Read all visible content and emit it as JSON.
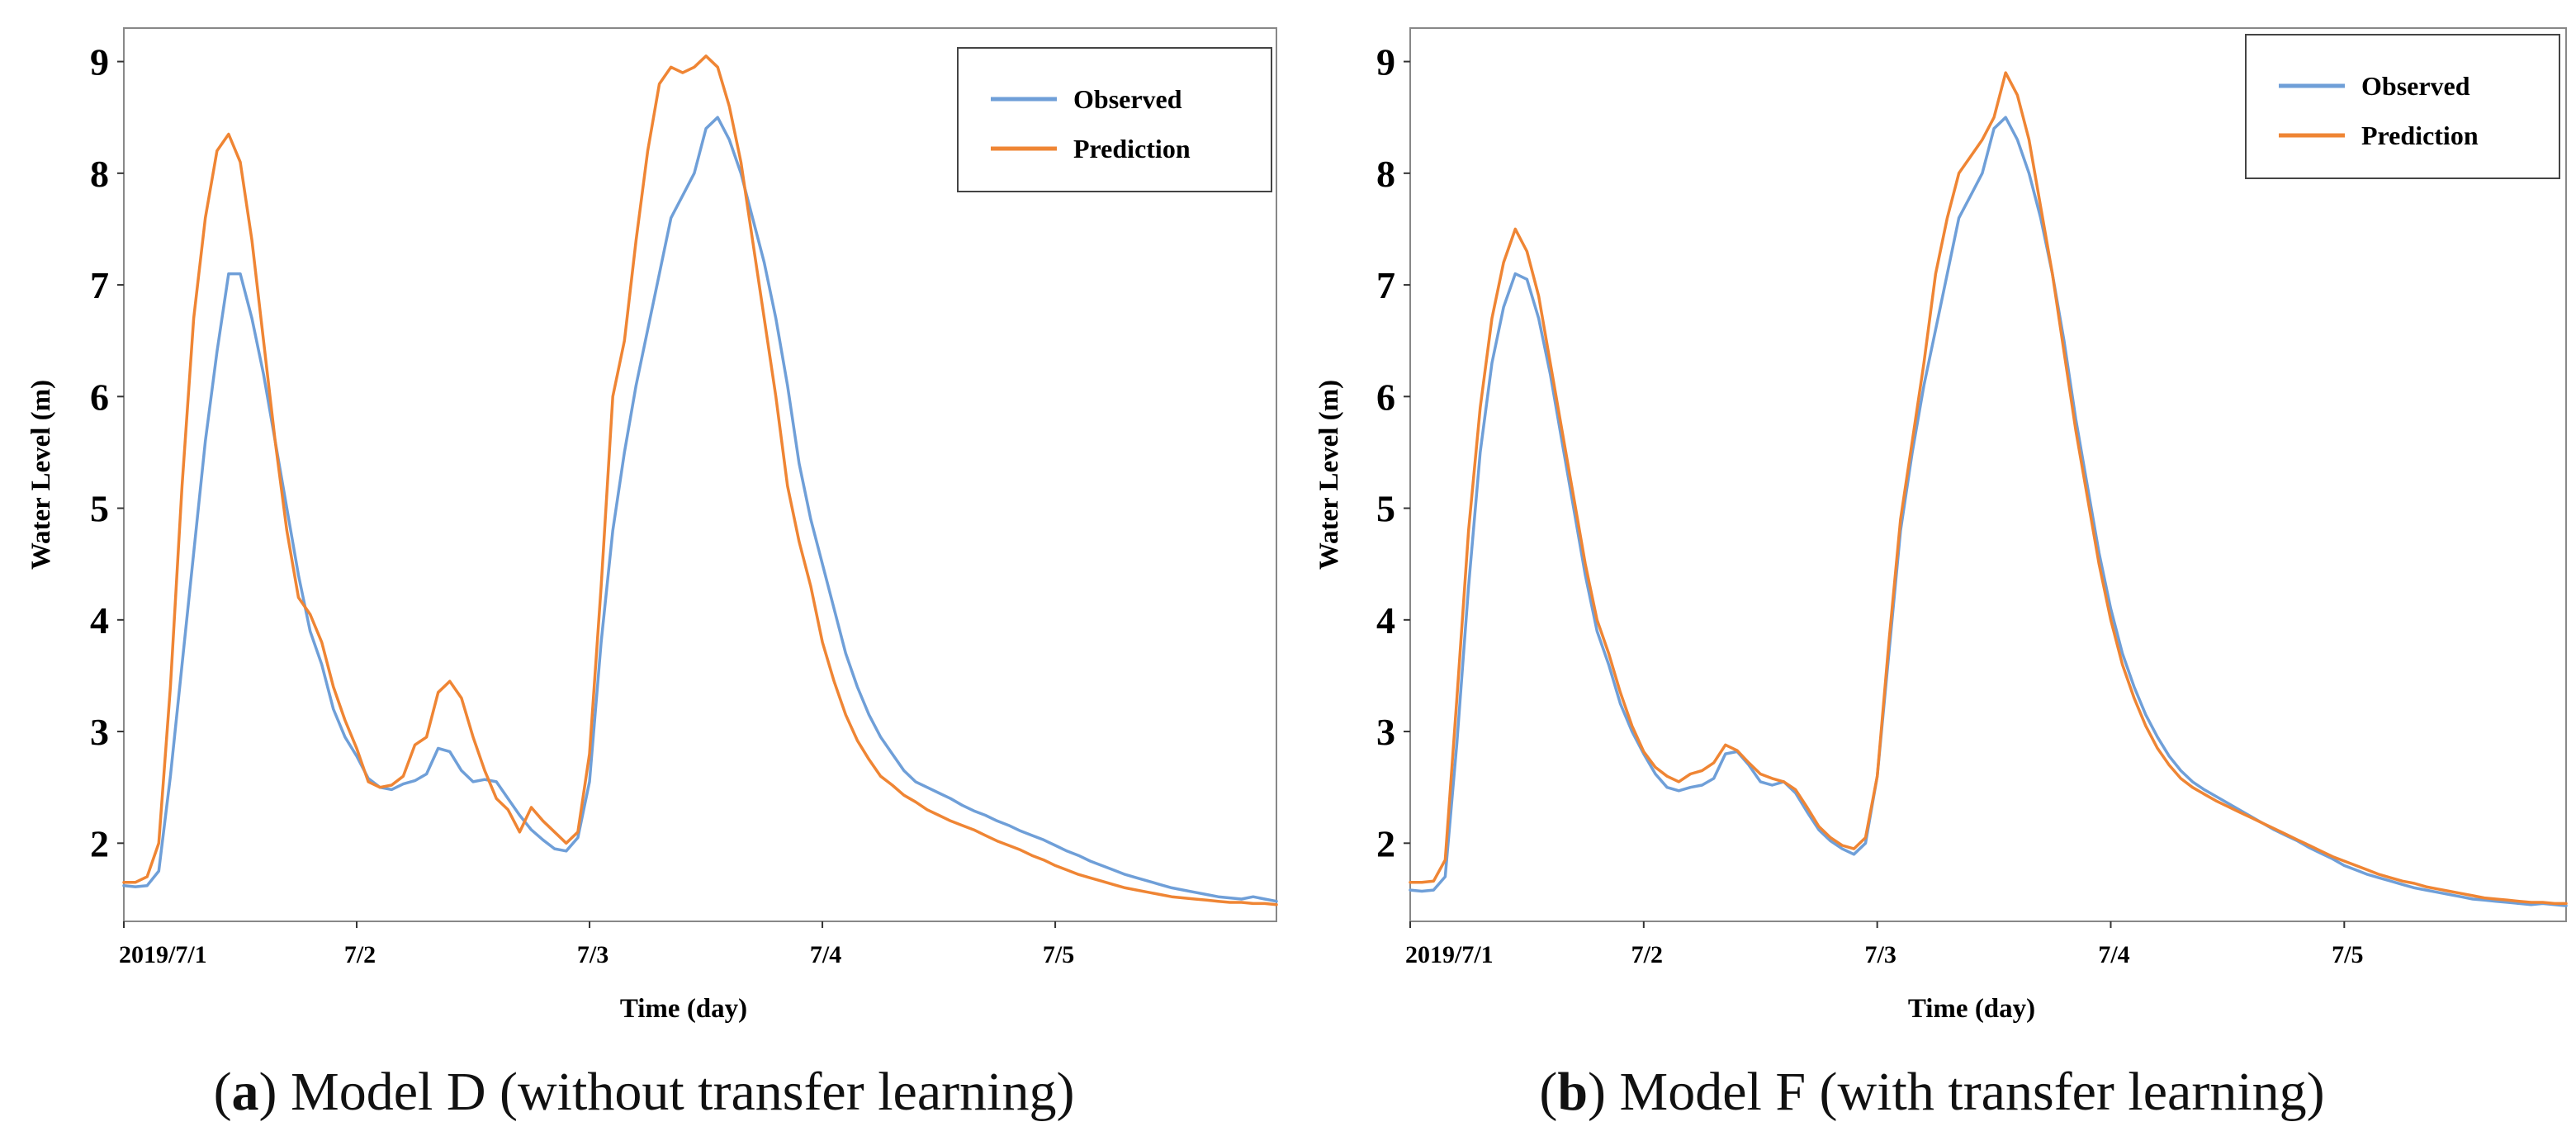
{
  "figures": [
    {
      "id": "a",
      "caption": {
        "letter": "a",
        "text": "Model D (without transfer learning)"
      },
      "chart_data": {
        "type": "line",
        "title": "",
        "xlabel": "Time (day)",
        "ylabel": "Water Level (m)",
        "x_tick_labels": [
          "2019/7/1",
          "7/2",
          "7/3",
          "7/4",
          "7/5"
        ],
        "x_tick_values": [
          0,
          1,
          2,
          3,
          4
        ],
        "xlim": [
          0,
          4.95
        ],
        "ylim": [
          1.3,
          9.3
        ],
        "y_ticks": [
          2,
          3,
          4,
          5,
          6,
          7,
          8,
          9
        ],
        "grid": false,
        "legend_position": "top-right",
        "x": [
          0,
          0.05,
          0.1,
          0.15,
          0.2,
          0.25,
          0.3,
          0.35,
          0.4,
          0.45,
          0.5,
          0.55,
          0.6,
          0.65,
          0.7,
          0.75,
          0.8,
          0.85,
          0.9,
          0.95,
          1.0,
          1.05,
          1.1,
          1.15,
          1.2,
          1.25,
          1.3,
          1.35,
          1.4,
          1.45,
          1.5,
          1.55,
          1.6,
          1.65,
          1.7,
          1.75,
          1.8,
          1.85,
          1.9,
          1.95,
          2.0,
          2.05,
          2.1,
          2.15,
          2.2,
          2.25,
          2.3,
          2.35,
          2.4,
          2.45,
          2.5,
          2.55,
          2.6,
          2.65,
          2.7,
          2.75,
          2.8,
          2.85,
          2.9,
          2.95,
          3.0,
          3.05,
          3.1,
          3.15,
          3.2,
          3.25,
          3.3,
          3.35,
          3.4,
          3.45,
          3.5,
          3.55,
          3.6,
          3.65,
          3.7,
          3.75,
          3.8,
          3.85,
          3.9,
          3.95,
          4.0,
          4.05,
          4.1,
          4.15,
          4.2,
          4.25,
          4.3,
          4.35,
          4.4,
          4.45,
          4.5,
          4.55,
          4.6,
          4.65,
          4.7,
          4.75,
          4.8,
          4.85,
          4.9,
          4.95
        ],
        "series": [
          {
            "name": "Observed",
            "color": "#6f9fd8",
            "values": [
              1.62,
              1.61,
              1.62,
              1.75,
              2.6,
              3.6,
              4.6,
              5.6,
              6.4,
              7.1,
              7.1,
              6.7,
              6.2,
              5.6,
              5.0,
              4.4,
              3.9,
              3.6,
              3.2,
              2.95,
              2.78,
              2.58,
              2.5,
              2.48,
              2.53,
              2.56,
              2.62,
              2.85,
              2.82,
              2.65,
              2.55,
              2.57,
              2.55,
              2.4,
              2.25,
              2.12,
              2.03,
              1.95,
              1.93,
              2.05,
              2.55,
              3.8,
              4.8,
              5.5,
              6.1,
              6.6,
              7.1,
              7.6,
              7.8,
              8.0,
              8.4,
              8.5,
              8.3,
              8.0,
              7.6,
              7.2,
              6.7,
              6.1,
              5.4,
              4.9,
              4.5,
              4.1,
              3.7,
              3.4,
              3.15,
              2.95,
              2.8,
              2.65,
              2.55,
              2.5,
              2.45,
              2.4,
              2.34,
              2.29,
              2.25,
              2.2,
              2.16,
              2.11,
              2.07,
              2.03,
              1.98,
              1.93,
              1.89,
              1.84,
              1.8,
              1.76,
              1.72,
              1.69,
              1.66,
              1.63,
              1.6,
              1.58,
              1.56,
              1.54,
              1.52,
              1.51,
              1.5,
              1.52,
              1.5,
              1.48
            ]
          },
          {
            "name": "Prediction",
            "color": "#ef8534",
            "values": [
              1.65,
              1.65,
              1.7,
              2.0,
              3.4,
              5.2,
              6.7,
              7.6,
              8.2,
              8.35,
              8.1,
              7.4,
              6.5,
              5.6,
              4.8,
              4.2,
              4.05,
              3.8,
              3.4,
              3.1,
              2.85,
              2.55,
              2.5,
              2.52,
              2.6,
              2.88,
              2.95,
              3.35,
              3.45,
              3.3,
              2.95,
              2.65,
              2.4,
              2.3,
              2.1,
              2.32,
              2.2,
              2.1,
              2.0,
              2.1,
              2.8,
              4.3,
              6.0,
              6.5,
              7.4,
              8.2,
              8.8,
              8.95,
              8.9,
              8.95,
              9.05,
              8.95,
              8.6,
              8.1,
              7.4,
              6.7,
              6.0,
              5.2,
              4.7,
              4.3,
              3.8,
              3.45,
              3.15,
              2.92,
              2.75,
              2.6,
              2.52,
              2.43,
              2.37,
              2.3,
              2.25,
              2.2,
              2.16,
              2.12,
              2.07,
              2.02,
              1.98,
              1.94,
              1.89,
              1.85,
              1.8,
              1.76,
              1.72,
              1.69,
              1.66,
              1.63,
              1.6,
              1.58,
              1.56,
              1.54,
              1.52,
              1.51,
              1.5,
              1.49,
              1.48,
              1.47,
              1.47,
              1.46,
              1.46,
              1.45
            ]
          }
        ]
      }
    },
    {
      "id": "b",
      "caption": {
        "letter": "b",
        "text": "Model F (with transfer learning)"
      },
      "chart_data": {
        "type": "line",
        "title": "",
        "xlabel": "Time (day)",
        "ylabel": "Water Level (m)",
        "x_tick_labels": [
          "2019/7/1",
          "7/2",
          "7/3",
          "7/4",
          "7/5"
        ],
        "x_tick_values": [
          0,
          1,
          2,
          3,
          4
        ],
        "xlim": [
          0,
          4.95
        ],
        "ylim": [
          1.3,
          9.3
        ],
        "y_ticks": [
          2,
          3,
          4,
          5,
          6,
          7,
          8,
          9
        ],
        "grid": false,
        "legend_position": "top-right",
        "x": [
          0,
          0.05,
          0.1,
          0.15,
          0.2,
          0.25,
          0.3,
          0.35,
          0.4,
          0.45,
          0.5,
          0.55,
          0.6,
          0.65,
          0.7,
          0.75,
          0.8,
          0.85,
          0.9,
          0.95,
          1.0,
          1.05,
          1.1,
          1.15,
          1.2,
          1.25,
          1.3,
          1.35,
          1.4,
          1.45,
          1.5,
          1.55,
          1.6,
          1.65,
          1.7,
          1.75,
          1.8,
          1.85,
          1.9,
          1.95,
          2.0,
          2.05,
          2.1,
          2.15,
          2.2,
          2.25,
          2.3,
          2.35,
          2.4,
          2.45,
          2.5,
          2.55,
          2.6,
          2.65,
          2.7,
          2.75,
          2.8,
          2.85,
          2.9,
          2.95,
          3.0,
          3.05,
          3.1,
          3.15,
          3.2,
          3.25,
          3.3,
          3.35,
          3.4,
          3.45,
          3.5,
          3.55,
          3.6,
          3.65,
          3.7,
          3.75,
          3.8,
          3.85,
          3.9,
          3.95,
          4.0,
          4.05,
          4.1,
          4.15,
          4.2,
          4.25,
          4.3,
          4.35,
          4.4,
          4.45,
          4.5,
          4.55,
          4.6,
          4.65,
          4.7,
          4.75,
          4.8,
          4.85,
          4.9,
          4.95
        ],
        "series": [
          {
            "name": "Observed",
            "color": "#6f9fd8",
            "values": [
              1.58,
              1.57,
              1.58,
              1.7,
              2.9,
              4.3,
              5.5,
              6.3,
              6.8,
              7.1,
              7.05,
              6.7,
              6.2,
              5.6,
              5.0,
              4.4,
              3.9,
              3.6,
              3.25,
              3.0,
              2.8,
              2.62,
              2.5,
              2.47,
              2.5,
              2.52,
              2.58,
              2.8,
              2.82,
              2.7,
              2.55,
              2.52,
              2.55,
              2.45,
              2.28,
              2.12,
              2.02,
              1.95,
              1.9,
              2.0,
              2.6,
              3.7,
              4.8,
              5.5,
              6.1,
              6.6,
              7.1,
              7.6,
              7.8,
              8.0,
              8.4,
              8.5,
              8.3,
              8.0,
              7.6,
              7.1,
              6.5,
              5.8,
              5.2,
              4.6,
              4.1,
              3.7,
              3.4,
              3.15,
              2.95,
              2.78,
              2.65,
              2.55,
              2.48,
              2.42,
              2.36,
              2.3,
              2.24,
              2.18,
              2.12,
              2.07,
              2.02,
              1.96,
              1.91,
              1.86,
              1.8,
              1.76,
              1.72,
              1.69,
              1.66,
              1.63,
              1.6,
              1.58,
              1.56,
              1.54,
              1.52,
              1.5,
              1.49,
              1.48,
              1.47,
              1.46,
              1.45,
              1.46,
              1.45,
              1.44
            ]
          },
          {
            "name": "Prediction",
            "color": "#ef8534",
            "values": [
              1.65,
              1.65,
              1.66,
              1.85,
              3.3,
              4.8,
              5.9,
              6.7,
              7.2,
              7.5,
              7.3,
              6.9,
              6.3,
              5.7,
              5.1,
              4.5,
              4.0,
              3.7,
              3.35,
              3.05,
              2.82,
              2.68,
              2.6,
              2.55,
              2.62,
              2.65,
              2.72,
              2.88,
              2.83,
              2.72,
              2.62,
              2.58,
              2.55,
              2.48,
              2.32,
              2.15,
              2.05,
              1.98,
              1.95,
              2.05,
              2.6,
              3.8,
              4.9,
              5.6,
              6.3,
              7.1,
              7.6,
              8.0,
              8.15,
              8.3,
              8.5,
              8.9,
              8.7,
              8.3,
              7.7,
              7.1,
              6.4,
              5.7,
              5.1,
              4.5,
              4.0,
              3.6,
              3.3,
              3.05,
              2.85,
              2.7,
              2.58,
              2.5,
              2.44,
              2.38,
              2.33,
              2.28,
              2.23,
              2.18,
              2.13,
              2.08,
              2.03,
              1.98,
              1.93,
              1.88,
              1.84,
              1.8,
              1.76,
              1.72,
              1.69,
              1.66,
              1.64,
              1.61,
              1.59,
              1.57,
              1.55,
              1.53,
              1.51,
              1.5,
              1.49,
              1.48,
              1.47,
              1.47,
              1.46,
              1.46
            ]
          }
        ]
      }
    }
  ]
}
